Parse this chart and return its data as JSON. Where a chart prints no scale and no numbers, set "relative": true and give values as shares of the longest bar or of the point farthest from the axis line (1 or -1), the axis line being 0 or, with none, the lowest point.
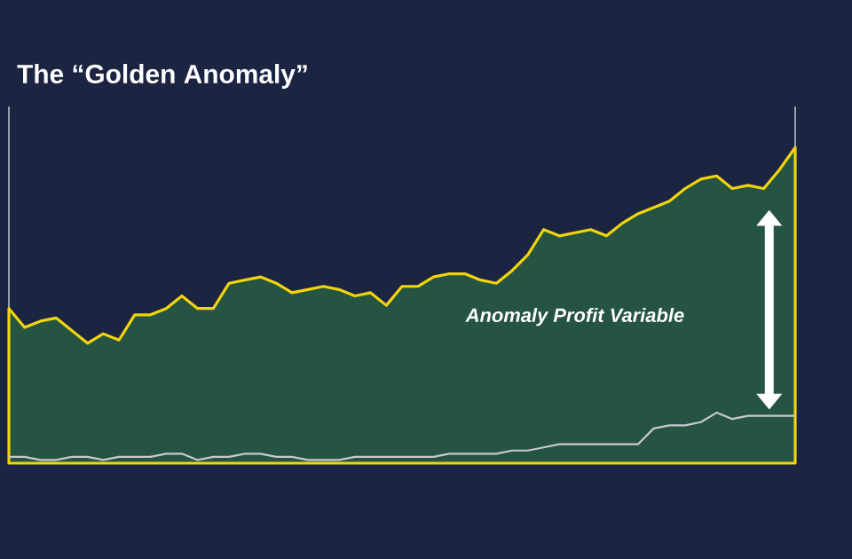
{
  "chart_data": {
    "type": "line",
    "title": "The “Golden Anomaly”",
    "relative": true,
    "categories": [
      null,
      null,
      null,
      null,
      null,
      null,
      null,
      null,
      null,
      null,
      null,
      null,
      null,
      null,
      null,
      null,
      null,
      null,
      null,
      null,
      null,
      null,
      null,
      null,
      null,
      null,
      null,
      null,
      null,
      null,
      null,
      null,
      null,
      null,
      null,
      null,
      null,
      null,
      null,
      null,
      null,
      null,
      null,
      null,
      null,
      null,
      null,
      null,
      null,
      null,
      null
    ],
    "annotations": [
      "Anomaly Profit Variable"
    ],
    "series": [
      {
        "type": "area",
        "color": "#f2d40c",
        "values": [
          0.49,
          0.43,
          0.45,
          0.46,
          0.42,
          0.38,
          0.41,
          0.39,
          0.47,
          0.47,
          0.49,
          0.53,
          0.49,
          0.49,
          0.57,
          0.58,
          0.59,
          0.57,
          0.54,
          0.55,
          0.56,
          0.55,
          0.53,
          0.54,
          0.5,
          0.56,
          0.56,
          0.59,
          0.6,
          0.6,
          0.58,
          0.57,
          0.61,
          0.66,
          0.74,
          0.72,
          0.73,
          0.74,
          0.72,
          0.76,
          0.79,
          0.81,
          0.83,
          0.87,
          0.9,
          0.91,
          0.87,
          0.88,
          0.87,
          0.93,
          1.0
        ]
      },
      {
        "color": "#c8c8d0",
        "values": [
          0.02,
          0.02,
          0.01,
          0.01,
          0.02,
          0.02,
          0.01,
          0.02,
          0.02,
          0.02,
          0.03,
          0.03,
          0.01,
          0.02,
          0.02,
          0.03,
          0.03,
          0.02,
          0.02,
          0.01,
          0.01,
          0.01,
          0.02,
          0.02,
          0.02,
          0.02,
          0.02,
          0.02,
          0.03,
          0.03,
          0.03,
          0.03,
          0.04,
          0.04,
          0.05,
          0.06,
          0.06,
          0.06,
          0.06,
          0.06,
          0.06,
          0.11,
          0.12,
          0.12,
          0.13,
          0.16,
          0.14,
          0.15,
          0.15,
          0.15,
          0.15
        ]
      }
    ]
  }
}
